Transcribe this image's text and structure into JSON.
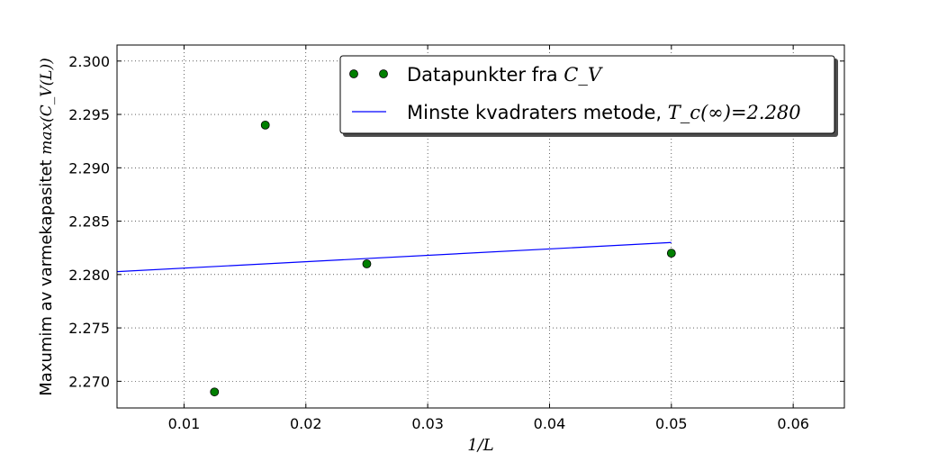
{
  "chart_data": {
    "type": "scatter",
    "xlabel": "1/L",
    "ylabel": "Maxumim av varmekapasitet max(C_V(L))",
    "ylabel_text": "Maxumim av varmekapasitet ",
    "ylabel_math": "max(C_V(L))",
    "xlim": [
      0.0045,
      0.0642
    ],
    "ylim": [
      2.2675,
      2.3015
    ],
    "xticks": [
      0.01,
      0.02,
      0.03,
      0.04,
      0.05,
      0.06
    ],
    "xtick_labels": [
      "0.01",
      "0.02",
      "0.03",
      "0.04",
      "0.05",
      "0.06"
    ],
    "yticks": [
      2.27,
      2.275,
      2.28,
      2.285,
      2.29,
      2.295,
      2.3
    ],
    "ytick_labels": [
      "2.270",
      "2.275",
      "2.280",
      "2.285",
      "2.290",
      "2.295",
      "2.300"
    ],
    "grid": true,
    "legend_position": "top-right",
    "series": [
      {
        "name": "Datapunkter fra C_V",
        "name_text": "Datapunkter fra ",
        "name_math": "C_V",
        "kind": "scatter",
        "color": "#007f00",
        "x": [
          0.0125,
          0.01667,
          0.025,
          0.05
        ],
        "y": [
          2.269,
          2.294,
          2.281,
          2.282
        ]
      },
      {
        "name": "Minste kvadraters metode, T_c(∞)=2.280",
        "name_text": "Minste kvadraters metode, ",
        "name_math": "T_c(∞)=2.280",
        "kind": "line",
        "color": "#0000ff",
        "x": [
          0.0,
          0.05
        ],
        "y": [
          2.28,
          2.283
        ]
      }
    ]
  }
}
